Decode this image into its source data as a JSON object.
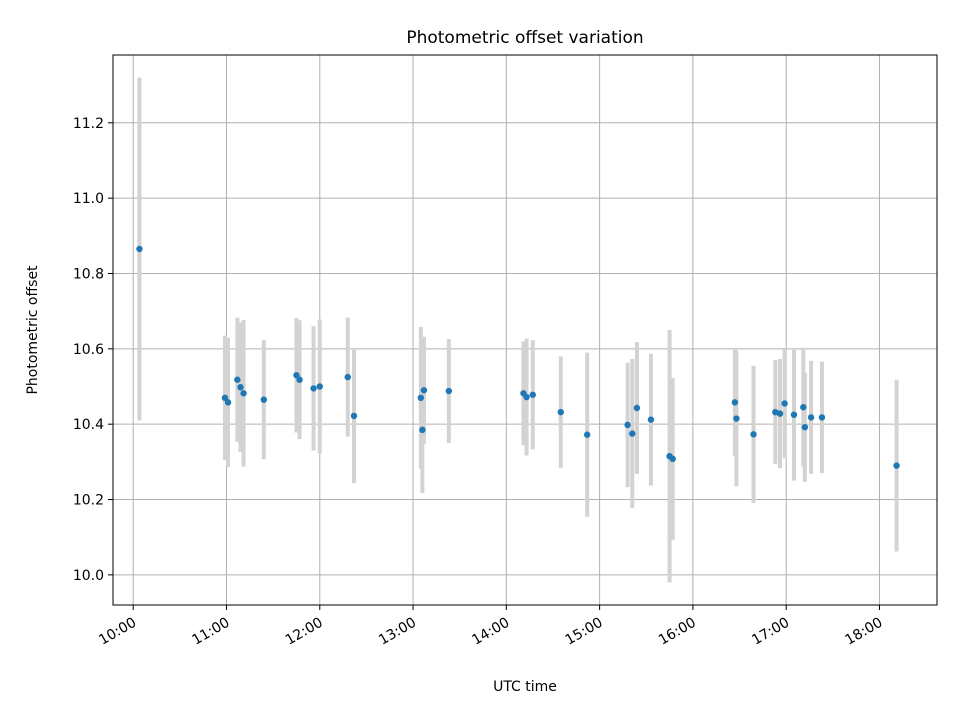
{
  "chart_data": {
    "type": "scatter",
    "title": "Photometric offset variation",
    "xlabel": "UTC time",
    "ylabel": "Photometric offset",
    "x_is_time": true,
    "xlim": [
      "09:47",
      "18:37"
    ],
    "ylim": [
      9.92,
      11.38
    ],
    "xticks": [
      "10:00",
      "11:00",
      "12:00",
      "13:00",
      "14:00",
      "15:00",
      "16:00",
      "17:00",
      "18:00"
    ],
    "yticks": [
      10.0,
      10.2,
      10.4,
      10.6,
      10.8,
      11.0,
      11.2
    ],
    "ytick_labels": [
      "10.0",
      "10.2",
      "10.4",
      "10.6",
      "10.8",
      "11.0",
      "11.2"
    ],
    "grid": true,
    "marker_color": "#1f77b4",
    "errorbar_color": "#d3d3d3",
    "points": [
      {
        "x": "10:04",
        "y": 10.865,
        "err": 0.455
      },
      {
        "x": "10:59",
        "y": 10.47,
        "err": 0.165
      },
      {
        "x": "11:01",
        "y": 10.458,
        "err": 0.172
      },
      {
        "x": "11:07",
        "y": 10.518,
        "err": 0.165
      },
      {
        "x": "11:09",
        "y": 10.498,
        "err": 0.172
      },
      {
        "x": "11:11",
        "y": 10.482,
        "err": 0.195
      },
      {
        "x": "11:24",
        "y": 10.465,
        "err": 0.158
      },
      {
        "x": "11:45",
        "y": 10.53,
        "err": 0.152
      },
      {
        "x": "11:47",
        "y": 10.518,
        "err": 0.158
      },
      {
        "x": "11:56",
        "y": 10.495,
        "err": 0.165
      },
      {
        "x": "12:00",
        "y": 10.5,
        "err": 0.178
      },
      {
        "x": "12:18",
        "y": 10.525,
        "err": 0.158
      },
      {
        "x": "12:22",
        "y": 10.422,
        "err": 0.178
      },
      {
        "x": "13:05",
        "y": 10.47,
        "err": 0.188
      },
      {
        "x": "13:06",
        "y": 10.385,
        "err": 0.168
      },
      {
        "x": "13:07",
        "y": 10.49,
        "err": 0.142
      },
      {
        "x": "13:23",
        "y": 10.488,
        "err": 0.138
      },
      {
        "x": "14:11",
        "y": 10.482,
        "err": 0.138
      },
      {
        "x": "14:13",
        "y": 10.472,
        "err": 0.155
      },
      {
        "x": "14:17",
        "y": 10.478,
        "err": 0.145
      },
      {
        "x": "14:35",
        "y": 10.432,
        "err": 0.148
      },
      {
        "x": "14:52",
        "y": 10.372,
        "err": 0.218
      },
      {
        "x": "15:18",
        "y": 10.398,
        "err": 0.165
      },
      {
        "x": "15:21",
        "y": 10.375,
        "err": 0.198
      },
      {
        "x": "15:24",
        "y": 10.443,
        "err": 0.175
      },
      {
        "x": "15:33",
        "y": 10.412,
        "err": 0.175
      },
      {
        "x": "15:45",
        "y": 10.315,
        "err": 0.335
      },
      {
        "x": "15:47",
        "y": 10.308,
        "err": 0.215
      },
      {
        "x": "16:27",
        "y": 10.458,
        "err": 0.142
      },
      {
        "x": "16:28",
        "y": 10.415,
        "err": 0.18
      },
      {
        "x": "16:39",
        "y": 10.373,
        "err": 0.182
      },
      {
        "x": "16:53",
        "y": 10.432,
        "err": 0.138
      },
      {
        "x": "16:56",
        "y": 10.428,
        "err": 0.145
      },
      {
        "x": "16:59",
        "y": 10.455,
        "err": 0.145
      },
      {
        "x": "17:05",
        "y": 10.425,
        "err": 0.175
      },
      {
        "x": "17:11",
        "y": 10.445,
        "err": 0.158
      },
      {
        "x": "17:12",
        "y": 10.392,
        "err": 0.145
      },
      {
        "x": "17:16",
        "y": 10.418,
        "err": 0.15
      },
      {
        "x": "17:23",
        "y": 10.418,
        "err": 0.148
      },
      {
        "x": "18:11",
        "y": 10.29,
        "err": 0.228
      }
    ]
  }
}
